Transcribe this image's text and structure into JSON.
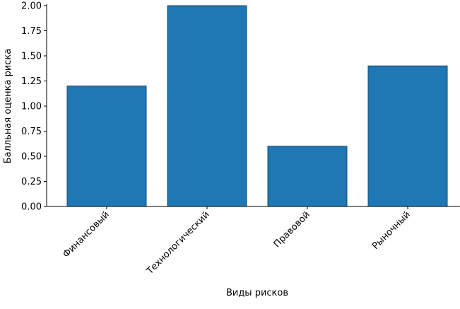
{
  "chart_data": {
    "type": "bar",
    "x_label": "Виды рисков",
    "y_label": "Балльная оценка риска",
    "categories": [
      "Финансовый",
      "Технологический",
      "Правовой",
      "Рыночный"
    ],
    "values": [
      1.2,
      2.0,
      0.6,
      1.4
    ],
    "color": "#1f77b4",
    "ylim": [
      0,
      2.0
    ],
    "yticks": [
      {
        "value": 0,
        "label": "0.00"
      },
      {
        "value": 0.25,
        "label": "0.25"
      },
      {
        "value": 0.5,
        "label": "0.50"
      },
      {
        "value": 0.75,
        "label": "0.75"
      },
      {
        "value": 1.0,
        "label": "1.00"
      },
      {
        "value": 1.25,
        "label": "1.25"
      },
      {
        "value": 1.5,
        "label": "1.50"
      },
      {
        "value": 1.75,
        "label": "1.75"
      },
      {
        "value": 2.0,
        "label": "2.00"
      }
    ],
    "grid": false
  }
}
